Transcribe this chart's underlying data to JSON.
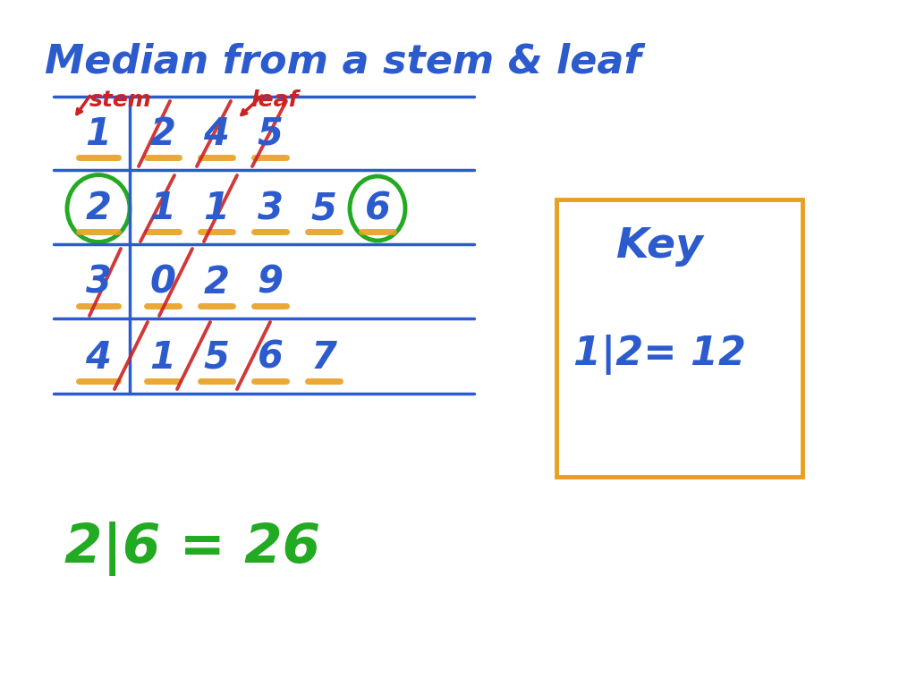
{
  "title": "Median from a stem & leaf",
  "title_color": "#2B5BCC",
  "title_fontsize": 32,
  "bg_color": "#FFFFFF",
  "stem_label": "stem",
  "leaf_label": "leaf",
  "label_color": "#CC2222",
  "label_fontsize": 18,
  "blue": "#2B5BCC",
  "orange": "#E8A020",
  "green": "#22AA22",
  "red": "#CC2222",
  "rows": [
    {
      "stem": "1",
      "leaves": [
        "2",
        "4",
        "5"
      ]
    },
    {
      "stem": "2",
      "leaves": [
        "1",
        "1",
        "3",
        "5",
        "6"
      ]
    },
    {
      "stem": "3",
      "leaves": [
        "0",
        "2",
        "9"
      ]
    },
    {
      "stem": "4",
      "leaves": [
        "1",
        "5",
        "6",
        "7"
      ]
    }
  ],
  "key_box_color": "#E8A020",
  "key_text": "Key",
  "key_formula": "1|2= 12",
  "median_text": "2|6 = 26",
  "median_color": "#22AA22",
  "median_fontsize": 44
}
